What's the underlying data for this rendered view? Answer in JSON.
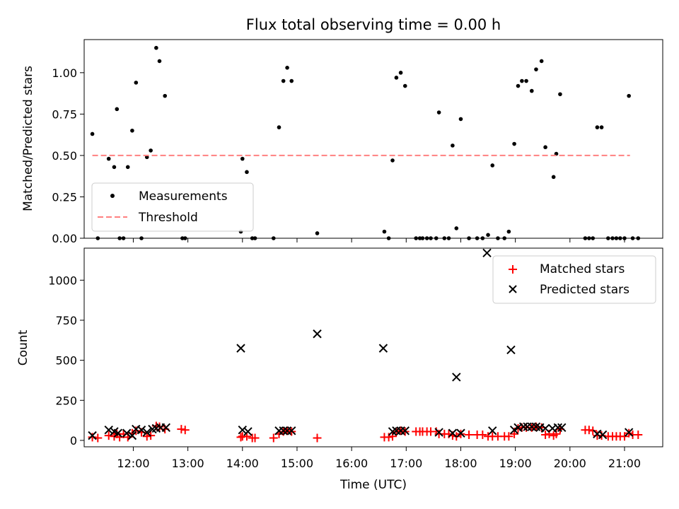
{
  "chart_data": [
    {
      "type": "scatter",
      "title": "Flux total observing time = 0.00 h",
      "xlabel": "",
      "ylabel": "Matched/Predicted stars",
      "xlim": [
        11.1,
        21.7
      ],
      "ylim": [
        0,
        1.2
      ],
      "yticks": [
        0.0,
        0.25,
        0.5,
        0.75,
        1.0
      ],
      "ytick_labels": [
        "0.00",
        "0.25",
        "0.50",
        "0.75",
        "1.00"
      ],
      "legend_position": "lower-left",
      "grid": false,
      "series": [
        {
          "name": "Measurements",
          "kind": "scatter",
          "marker": "dot",
          "color": "#000000",
          "points": [
            [
              11.25,
              0.63
            ],
            [
              11.35,
              0.0
            ],
            [
              11.55,
              0.48
            ],
            [
              11.65,
              0.43
            ],
            [
              11.7,
              0.78
            ],
            [
              11.75,
              0.0
            ],
            [
              11.82,
              0.0
            ],
            [
              11.9,
              0.43
            ],
            [
              11.98,
              0.65
            ],
            [
              12.05,
              0.94
            ],
            [
              12.15,
              0.0
            ],
            [
              12.25,
              0.49
            ],
            [
              12.32,
              0.53
            ],
            [
              12.42,
              1.15
            ],
            [
              12.48,
              1.07
            ],
            [
              12.58,
              0.86
            ],
            [
              12.9,
              0.0
            ],
            [
              12.95,
              0.0
            ],
            [
              13.97,
              0.04
            ],
            [
              14.0,
              0.48
            ],
            [
              14.08,
              0.4
            ],
            [
              14.18,
              0.0
            ],
            [
              14.23,
              0.0
            ],
            [
              14.57,
              0.0
            ],
            [
              14.67,
              0.67
            ],
            [
              14.75,
              0.95
            ],
            [
              14.82,
              1.03
            ],
            [
              14.9,
              0.95
            ],
            [
              15.37,
              0.03
            ],
            [
              16.6,
              0.04
            ],
            [
              16.68,
              0.0
            ],
            [
              16.75,
              0.47
            ],
            [
              16.82,
              0.97
            ],
            [
              16.9,
              1.0
            ],
            [
              16.98,
              0.92
            ],
            [
              17.18,
              0.0
            ],
            [
              17.25,
              0.0
            ],
            [
              17.3,
              0.0
            ],
            [
              17.38,
              0.0
            ],
            [
              17.45,
              0.0
            ],
            [
              17.55,
              0.0
            ],
            [
              17.6,
              0.76
            ],
            [
              17.7,
              0.0
            ],
            [
              17.78,
              0.0
            ],
            [
              17.85,
              0.56
            ],
            [
              17.92,
              0.06
            ],
            [
              18.0,
              0.72
            ],
            [
              18.15,
              0.0
            ],
            [
              18.3,
              0.0
            ],
            [
              18.4,
              0.0
            ],
            [
              18.5,
              0.02
            ],
            [
              18.58,
              0.44
            ],
            [
              18.68,
              0.0
            ],
            [
              18.8,
              0.0
            ],
            [
              18.88,
              0.04
            ],
            [
              18.98,
              0.57
            ],
            [
              19.05,
              0.92
            ],
            [
              19.12,
              0.95
            ],
            [
              19.2,
              0.95
            ],
            [
              19.3,
              0.89
            ],
            [
              19.38,
              1.02
            ],
            [
              19.48,
              1.07
            ],
            [
              19.55,
              0.55
            ],
            [
              19.7,
              0.37
            ],
            [
              19.75,
              0.51
            ],
            [
              19.82,
              0.87
            ],
            [
              20.28,
              0.0
            ],
            [
              20.35,
              0.0
            ],
            [
              20.42,
              0.0
            ],
            [
              20.5,
              0.67
            ],
            [
              20.58,
              0.67
            ],
            [
              20.7,
              0.0
            ],
            [
              20.78,
              0.0
            ],
            [
              20.85,
              0.0
            ],
            [
              20.92,
              0.0
            ],
            [
              21.0,
              0.0
            ],
            [
              21.08,
              0.86
            ],
            [
              21.15,
              0.0
            ],
            [
              21.25,
              0.0
            ]
          ]
        },
        {
          "name": "Threshold",
          "kind": "line",
          "dash": true,
          "color": "#ff8080",
          "points": [
            [
              11.25,
              0.5
            ],
            [
              21.1,
              0.5
            ]
          ]
        }
      ]
    },
    {
      "type": "scatter",
      "title": "",
      "xlabel": "Time (UTC)",
      "ylabel": "Count",
      "xlim": [
        11.1,
        21.7
      ],
      "ylim": [
        -40,
        1200
      ],
      "xticks": [
        11,
        12,
        13,
        14,
        15,
        16,
        17,
        18,
        19,
        20,
        21
      ],
      "xtick_labels": [
        "11:00",
        "12:00",
        "13:00",
        "14:00",
        "15:00",
        "16:00",
        "17:00",
        "18:00",
        "19:00",
        "20:00",
        "21:00"
      ],
      "yticks": [
        0,
        250,
        500,
        750,
        1000
      ],
      "ytick_labels": [
        "0",
        "250",
        "500",
        "750",
        "1000"
      ],
      "legend_position": "top-right",
      "grid": false,
      "series": [
        {
          "name": "Matched stars",
          "kind": "scatter",
          "marker": "plus",
          "color": "#ff0000",
          "points": [
            [
              11.25,
              20
            ],
            [
              11.35,
              15
            ],
            [
              11.55,
              30
            ],
            [
              11.65,
              25
            ],
            [
              11.7,
              40
            ],
            [
              11.75,
              20
            ],
            [
              11.82,
              40
            ],
            [
              11.9,
              20
            ],
            [
              11.98,
              45
            ],
            [
              12.05,
              60
            ],
            [
              12.15,
              50
            ],
            [
              12.25,
              25
            ],
            [
              12.32,
              30
            ],
            [
              12.42,
              90
            ],
            [
              12.48,
              85
            ],
            [
              12.58,
              70
            ],
            [
              12.88,
              70
            ],
            [
              12.95,
              65
            ],
            [
              13.97,
              20
            ],
            [
              14.0,
              25
            ],
            [
              14.08,
              25
            ],
            [
              14.18,
              15
            ],
            [
              14.23,
              15
            ],
            [
              14.57,
              15
            ],
            [
              14.67,
              40
            ],
            [
              14.75,
              55
            ],
            [
              14.82,
              60
            ],
            [
              14.9,
              55
            ],
            [
              15.37,
              15
            ],
            [
              16.6,
              20
            ],
            [
              16.68,
              20
            ],
            [
              16.75,
              25
            ],
            [
              16.82,
              55
            ],
            [
              16.9,
              60
            ],
            [
              16.98,
              55
            ],
            [
              17.18,
              55
            ],
            [
              17.25,
              55
            ],
            [
              17.3,
              55
            ],
            [
              17.38,
              55
            ],
            [
              17.45,
              55
            ],
            [
              17.55,
              55
            ],
            [
              17.6,
              40
            ],
            [
              17.7,
              40
            ],
            [
              17.78,
              40
            ],
            [
              17.85,
              30
            ],
            [
              17.92,
              25
            ],
            [
              18.0,
              40
            ],
            [
              18.15,
              35
            ],
            [
              18.3,
              35
            ],
            [
              18.4,
              35
            ],
            [
              18.5,
              25
            ],
            [
              18.58,
              25
            ],
            [
              18.68,
              25
            ],
            [
              18.8,
              25
            ],
            [
              18.88,
              25
            ],
            [
              18.98,
              40
            ],
            [
              19.05,
              75
            ],
            [
              19.12,
              80
            ],
            [
              19.2,
              80
            ],
            [
              19.3,
              80
            ],
            [
              19.38,
              85
            ],
            [
              19.48,
              80
            ],
            [
              19.55,
              35
            ],
            [
              19.62,
              40
            ],
            [
              19.7,
              30
            ],
            [
              19.75,
              40
            ],
            [
              19.82,
              70
            ],
            [
              20.28,
              65
            ],
            [
              20.35,
              65
            ],
            [
              20.42,
              60
            ],
            [
              20.5,
              30
            ],
            [
              20.58,
              30
            ],
            [
              20.7,
              25
            ],
            [
              20.78,
              25
            ],
            [
              20.85,
              25
            ],
            [
              20.92,
              25
            ],
            [
              21.0,
              25
            ],
            [
              21.08,
              45
            ],
            [
              21.15,
              35
            ],
            [
              21.25,
              35
            ]
          ]
        },
        {
          "name": "Predicted stars",
          "kind": "scatter",
          "marker": "x",
          "color": "#000000",
          "points": [
            [
              11.25,
              30
            ],
            [
              11.55,
              65
            ],
            [
              11.65,
              55
            ],
            [
              11.72,
              45
            ],
            [
              11.88,
              45
            ],
            [
              11.98,
              30
            ],
            [
              12.05,
              70
            ],
            [
              12.15,
              65
            ],
            [
              12.25,
              50
            ],
            [
              12.35,
              70
            ],
            [
              12.42,
              75
            ],
            [
              12.5,
              80
            ],
            [
              12.6,
              80
            ],
            [
              13.97,
              575
            ],
            [
              14.0,
              65
            ],
            [
              14.1,
              55
            ],
            [
              14.67,
              60
            ],
            [
              14.75,
              60
            ],
            [
              14.82,
              60
            ],
            [
              14.9,
              60
            ],
            [
              15.37,
              665
            ],
            [
              16.58,
              575
            ],
            [
              16.75,
              55
            ],
            [
              16.82,
              60
            ],
            [
              16.9,
              60
            ],
            [
              16.98,
              60
            ],
            [
              17.6,
              50
            ],
            [
              17.85,
              45
            ],
            [
              17.92,
              395
            ],
            [
              18.0,
              45
            ],
            [
              18.48,
              1170
            ],
            [
              18.58,
              60
            ],
            [
              18.92,
              565
            ],
            [
              18.98,
              65
            ],
            [
              19.05,
              80
            ],
            [
              19.15,
              85
            ],
            [
              19.22,
              85
            ],
            [
              19.3,
              85
            ],
            [
              19.38,
              85
            ],
            [
              19.45,
              80
            ],
            [
              19.55,
              75
            ],
            [
              19.68,
              75
            ],
            [
              19.78,
              80
            ],
            [
              19.85,
              80
            ],
            [
              20.5,
              40
            ],
            [
              20.6,
              35
            ],
            [
              21.08,
              50
            ]
          ]
        }
      ]
    }
  ]
}
